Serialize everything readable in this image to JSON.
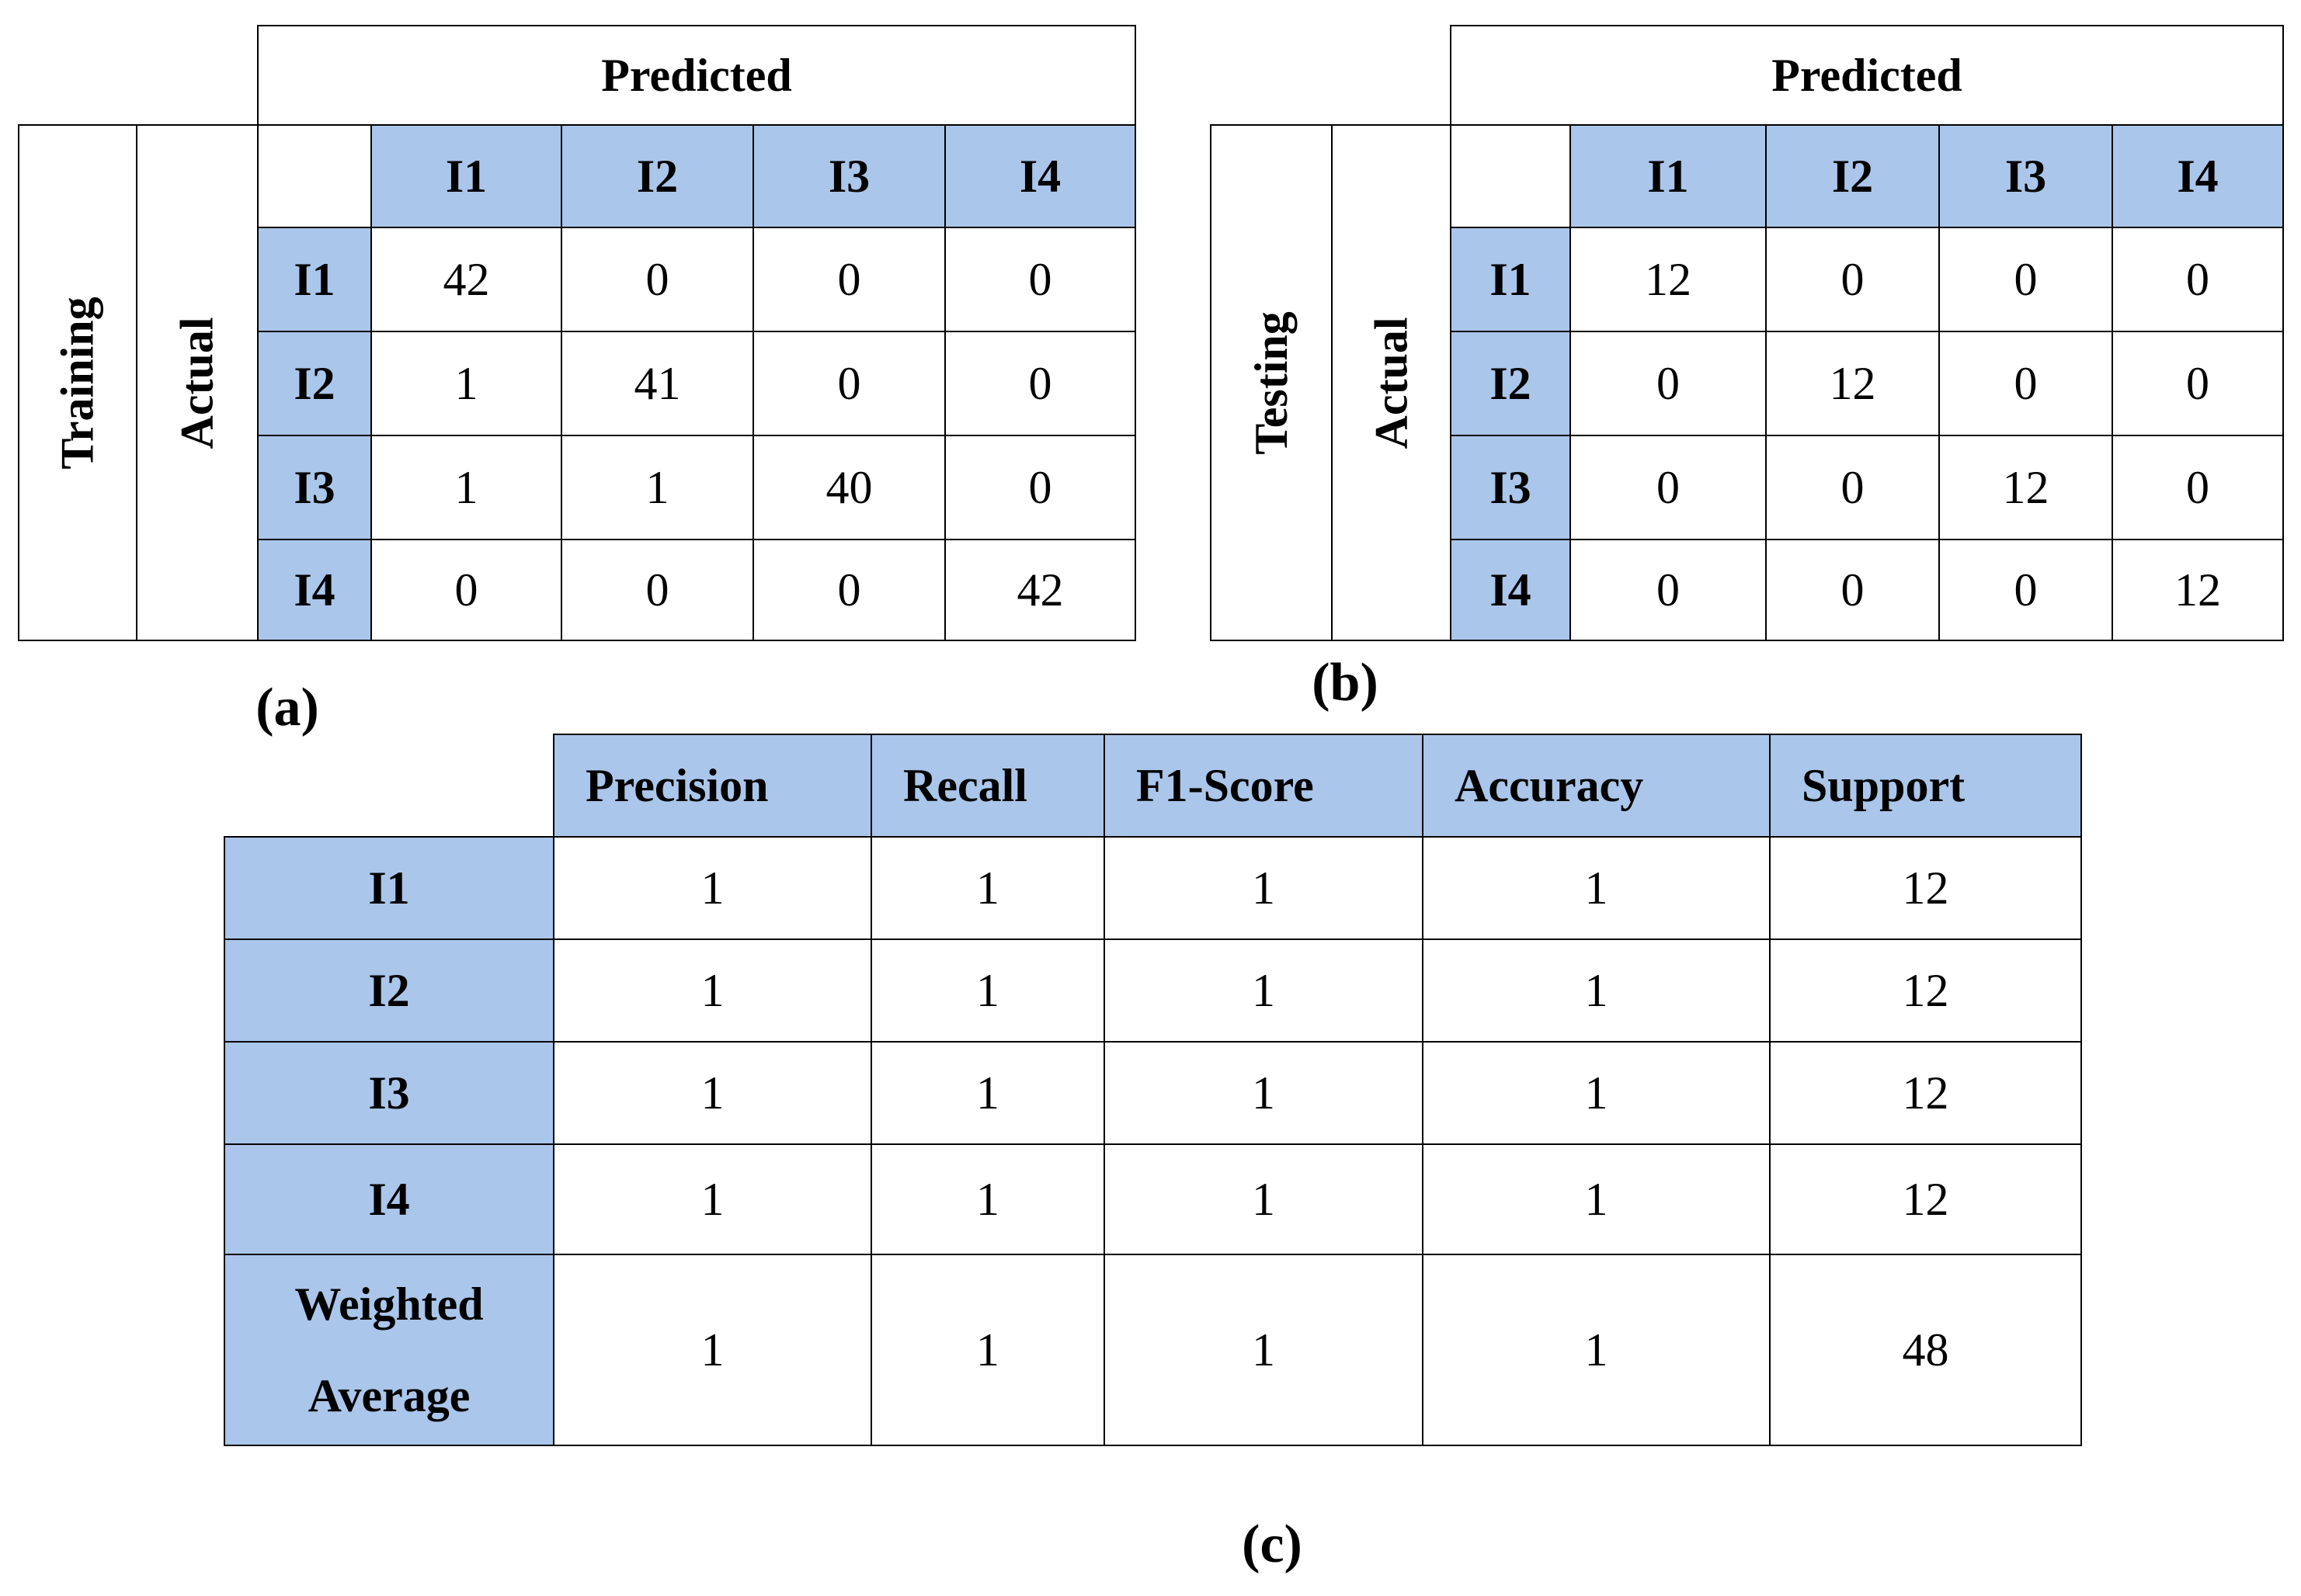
{
  "panel_a": {
    "caption": "(a)",
    "set_label": "Training",
    "actual_label": "Actual",
    "predicted_label": "Predicted",
    "classes": [
      "I1",
      "I2",
      "I3",
      "I4"
    ],
    "matrix": [
      [
        "42",
        "0",
        "0",
        "0"
      ],
      [
        "1",
        "41",
        "0",
        "0"
      ],
      [
        "1",
        "1",
        "40",
        "0"
      ],
      [
        "0",
        "0",
        "0",
        "42"
      ]
    ]
  },
  "panel_b": {
    "caption": "(b)",
    "set_label": "Testing",
    "actual_label": "Actual",
    "predicted_label": "Predicted",
    "classes": [
      "I1",
      "I2",
      "I3",
      "I4"
    ],
    "matrix": [
      [
        "12",
        "0",
        "0",
        "0"
      ],
      [
        "0",
        "12",
        "0",
        "0"
      ],
      [
        "0",
        "0",
        "12",
        "0"
      ],
      [
        "0",
        "0",
        "0",
        "12"
      ]
    ]
  },
  "panel_c": {
    "caption": "(c)",
    "columns": [
      "Precision",
      "Recall",
      "F1-Score",
      "Accuracy",
      "Support"
    ],
    "rows": [
      {
        "label": "I1",
        "values": [
          "1",
          "1",
          "1",
          "1",
          "12"
        ]
      },
      {
        "label": "I2",
        "values": [
          "1",
          "1",
          "1",
          "1",
          "12"
        ]
      },
      {
        "label": "I3",
        "values": [
          "1",
          "1",
          "1",
          "1",
          "12"
        ]
      },
      {
        "label": "I4",
        "values": [
          "1",
          "1",
          "1",
          "1",
          "12"
        ]
      },
      {
        "label_line1": "Weighted",
        "label_line2": "Average",
        "values": [
          "1",
          "1",
          "1",
          "1",
          "48"
        ]
      }
    ]
  },
  "colors": {
    "header_fill": "#aac6ea",
    "border": "#000000"
  }
}
